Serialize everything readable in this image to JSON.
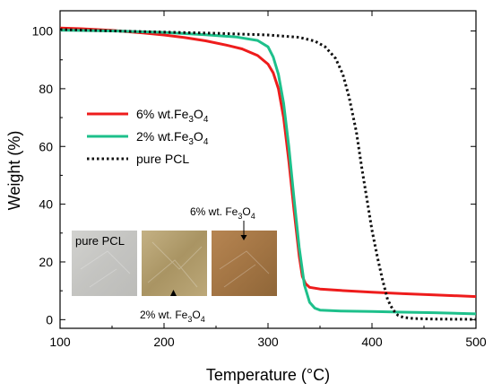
{
  "chart_data": {
    "type": "line",
    "xlabel": "Temperature (°C)",
    "ylabel": "Weight (%)",
    "xlim": [
      100,
      500
    ],
    "ylim": [
      -3,
      107
    ],
    "xticks": [
      100,
      200,
      300,
      400,
      500
    ],
    "yticks": [
      0,
      20,
      40,
      60,
      80,
      100
    ],
    "grid": false,
    "legend_position": "middle-left",
    "series": [
      {
        "name": "6% wt.Fe3O4",
        "color": "#ee1c1c",
        "style": "solid",
        "x": [
          100,
          120,
          150,
          180,
          200,
          220,
          240,
          260,
          275,
          290,
          300,
          305,
          310,
          315,
          320,
          325,
          330,
          333,
          336,
          340,
          350,
          370,
          400,
          430,
          460,
          500
        ],
        "y": [
          101,
          100.8,
          100.2,
          99.3,
          98.6,
          97.7,
          96.6,
          95.1,
          93.8,
          91.5,
          88.5,
          85.5,
          80.0,
          70.0,
          55.0,
          38.0,
          22.0,
          15.0,
          12.5,
          11.2,
          10.6,
          10.1,
          9.5,
          9.0,
          8.6,
          8.0
        ]
      },
      {
        "name": "2% wt.Fe3O4",
        "color": "#1ec08b",
        "style": "solid",
        "x": [
          100,
          150,
          200,
          240,
          270,
          290,
          300,
          305,
          310,
          315,
          320,
          325,
          330,
          335,
          340,
          345,
          350,
          370,
          400,
          430,
          460,
          500
        ],
        "y": [
          100.3,
          100.0,
          99.5,
          98.7,
          97.9,
          96.7,
          94.5,
          91.0,
          85.0,
          75.0,
          60.0,
          42.0,
          25.0,
          12.0,
          6.0,
          4.0,
          3.3,
          3.0,
          2.8,
          2.6,
          2.4,
          2.0
        ]
      },
      {
        "name": "pure PCL",
        "color": "#111111",
        "style": "dotted",
        "x": [
          100,
          150,
          200,
          250,
          300,
          330,
          345,
          355,
          365,
          372,
          378,
          385,
          390,
          395,
          400,
          405,
          410,
          415,
          420,
          425,
          430,
          440,
          460,
          500
        ],
        "y": [
          100.5,
          100.0,
          99.6,
          99.2,
          98.6,
          97.8,
          96.5,
          94.5,
          90.5,
          85.0,
          77.0,
          65.0,
          53.0,
          42.0,
          31.0,
          22.0,
          14.0,
          7.0,
          3.5,
          1.5,
          0.8,
          0.4,
          0.2,
          0.1
        ]
      }
    ],
    "legend": [
      {
        "prefix": "6% wt.Fe",
        "sub": "3",
        "mid": "O",
        "sub2": "4",
        "color": "#ee1c1c",
        "style": "solid"
      },
      {
        "prefix": "2% wt.Fe",
        "sub": "3",
        "mid": "O",
        "sub2": "4",
        "color": "#1ec08b",
        "style": "solid"
      },
      {
        "prefix": "pure PCL",
        "sub": "",
        "mid": "",
        "sub2": "",
        "color": "#111111",
        "style": "dotted"
      }
    ],
    "inset": {
      "photos": [
        {
          "label": "pure PCL",
          "color": "#c9c9c6"
        },
        {
          "label": "",
          "color": "#b6a070"
        },
        {
          "label": "",
          "color": "#a87a48"
        }
      ],
      "annotation_top": {
        "prefix": "6% wt. Fe",
        "sub": "3",
        "mid": "O",
        "sub2": "4"
      },
      "annotation_bottom": {
        "prefix": "2% wt. Fe",
        "sub": "3",
        "mid": "O",
        "sub2": "4"
      }
    }
  }
}
